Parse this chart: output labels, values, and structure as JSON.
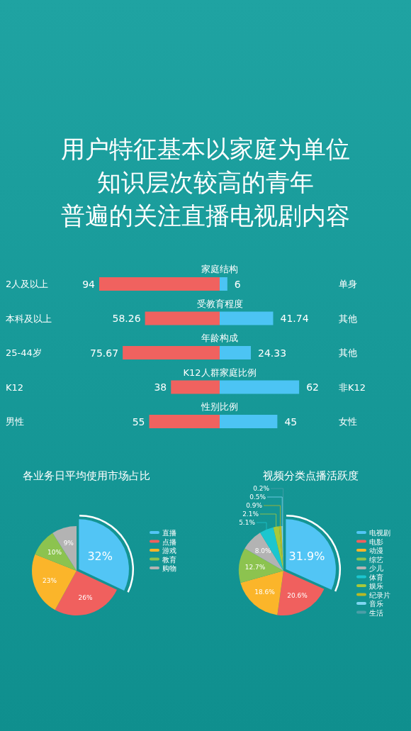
{
  "chart_data": [
    {
      "type": "other",
      "title": "用户特征基本以家庭为单位",
      "subtitle": "知识层次较高的青年",
      "annotations": [
        "普遍的关注直播电视剧内容"
      ]
    },
    {
      "type": "bar",
      "orientation": "horizontal",
      "categories": [
        "家庭结构",
        "受教育程度",
        "年龄构成",
        "K12人群家庭比例",
        "性别比例"
      ],
      "tick_labels": "y",
      "data_labels": true,
      "series": [
        {
          "color": "#f0625f",
          "values": [
            94,
            58.26,
            75.67,
            38,
            55
          ]
        }
      ],
      "annotations": [
        "2人及以上",
        "本科及以上",
        "25-44岁",
        "K12",
        "男性"
      ]
    },
    {
      "type": "bar",
      "orientation": "horizontal",
      "categories": [
        null,
        null,
        null,
        null,
        null
      ],
      "tick_labels": false,
      "data_labels": true,
      "series": [
        {
          "color": "#4cc4f4",
          "values": [
            6,
            41.74,
            24.33,
            62,
            45
          ]
        }
      ],
      "annotations": [
        "单身",
        "其他",
        "其他",
        "非K12",
        "女性"
      ]
    },
    {
      "type": "pie",
      "title": "各业务日平均使用市场占比",
      "categories": [
        "直播",
        "点播",
        "游戏",
        "教育",
        "购物"
      ],
      "values": [
        32,
        26,
        23,
        10,
        9
      ],
      "value_labels": [
        "32%",
        "26%",
        "23%",
        "10%",
        "9%"
      ],
      "colors": [
        "#52c5f5",
        "#f0605e",
        "#fbb52a",
        "#8cc34f",
        "#b3b3b3"
      ],
      "legend": "right"
    },
    {
      "type": "pie",
      "title": "视频分类点播活跃度",
      "categories": [
        "电视剧",
        "电影",
        "动漫",
        "综艺",
        "少儿",
        "体育",
        "娱乐",
        "纪录片",
        "音乐",
        "生活"
      ],
      "values": [
        31.9,
        20.6,
        18.6,
        12.7,
        8.0,
        5.1,
        2.1,
        0.9,
        0.5,
        0.2
      ],
      "value_labels": [
        "31.9%",
        "20.6%",
        "18.6%",
        "12.7%",
        "8.0%",
        "5.1%",
        "2.1%",
        "0.9%",
        "0.5%",
        "0.2%"
      ],
      "colors": [
        "#52c5f5",
        "#f0605e",
        "#fbb52a",
        "#8cc34f",
        "#b3b3b3",
        "#1cc6cf",
        "#a8c93a",
        "#b9b925",
        "#7fd6f2",
        "#4c9ea8"
      ],
      "legend": "right"
    }
  ]
}
